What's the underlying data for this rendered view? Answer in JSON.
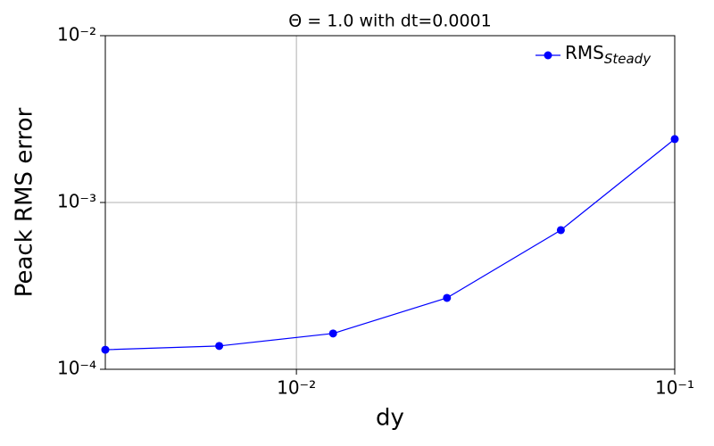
{
  "chart_data": {
    "type": "line",
    "title": "Θ = 1.0 with dt=0.0001",
    "x_label": "dy",
    "y_label": "Peack RMS error",
    "xlog": true,
    "ylog": true,
    "grid": true,
    "legend": "upper right",
    "x": [
      0.003125,
      0.00625,
      0.0125,
      0.025,
      0.05,
      0.1
    ],
    "series": [
      {
        "name": "RMS",
        "name_sub": "Steady",
        "color": "#0000ff",
        "values": [
          0.000131,
          0.000138,
          0.000164,
          0.000268,
          0.000683,
          0.0024
        ]
      }
    ],
    "xlim": [
      0.003125,
      0.1
    ],
    "ylim": [
      0.0001,
      0.01
    ],
    "xticks": [
      {
        "value": 0.01,
        "label": "10⁻²"
      },
      {
        "value": 0.1,
        "label": "10⁻¹"
      }
    ],
    "yticks": [
      {
        "value": 0.0001,
        "label": "10⁻⁴"
      },
      {
        "value": 0.001,
        "label": "10⁻³"
      },
      {
        "value": 0.01,
        "label": "10⁻²"
      }
    ]
  }
}
